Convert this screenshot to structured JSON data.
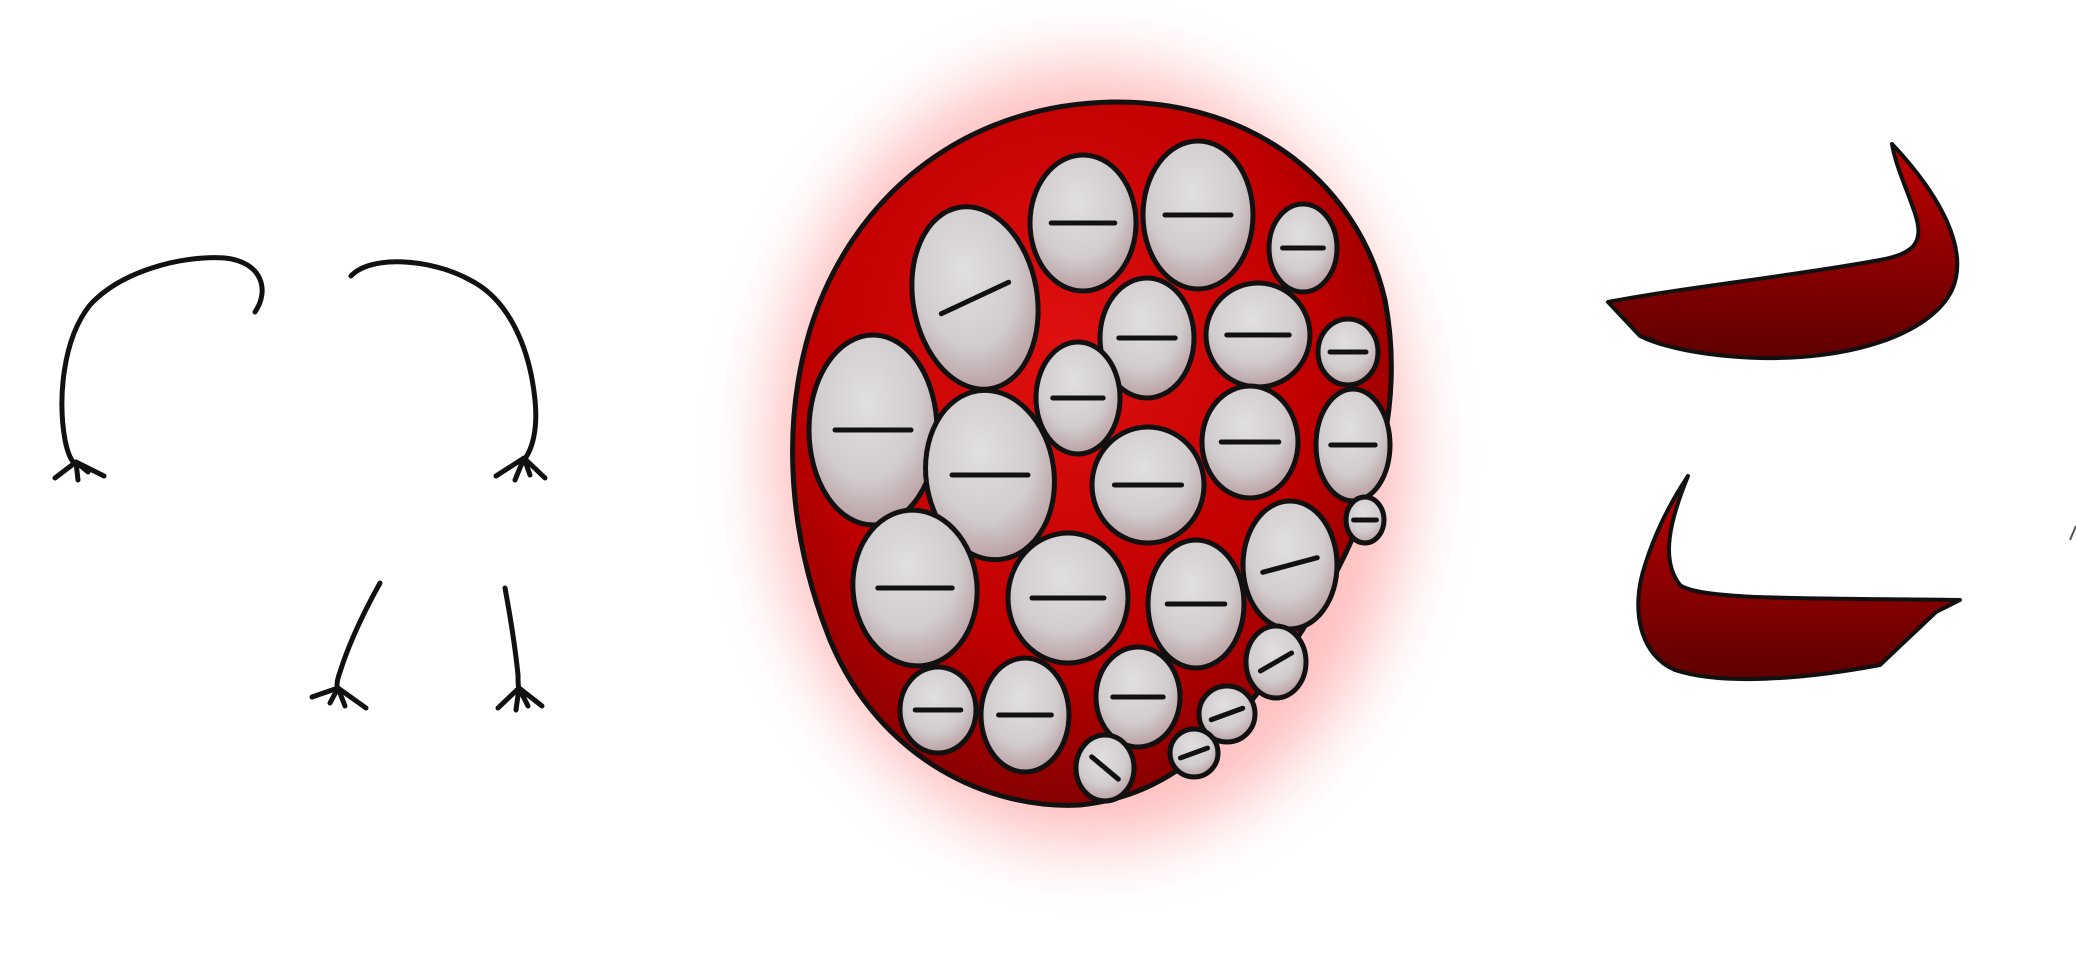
{
  "palette": {
    "background": "#ffffff",
    "line": "#111111",
    "body_red": "#c00000",
    "body_red_dark": "#7a0000",
    "glow": "#ff4a4a",
    "pod_fill": "#d7d3d4",
    "pod_shade": "#b89a9d",
    "horn_red": "#a80000",
    "horn_red_dark": "#5e0000"
  },
  "sprites": [
    {
      "name": "arms-sprite",
      "icon": "arm-outline-icon"
    },
    {
      "name": "legs-sprite",
      "icon": "leg-outline-icon"
    },
    {
      "name": "egg-cluster-sprite",
      "icon": "egg-pod-cluster-icon"
    },
    {
      "name": "upper-horn-sprite",
      "icon": "horn-icon"
    },
    {
      "name": "lower-horn-sprite",
      "icon": "horn-icon"
    }
  ]
}
